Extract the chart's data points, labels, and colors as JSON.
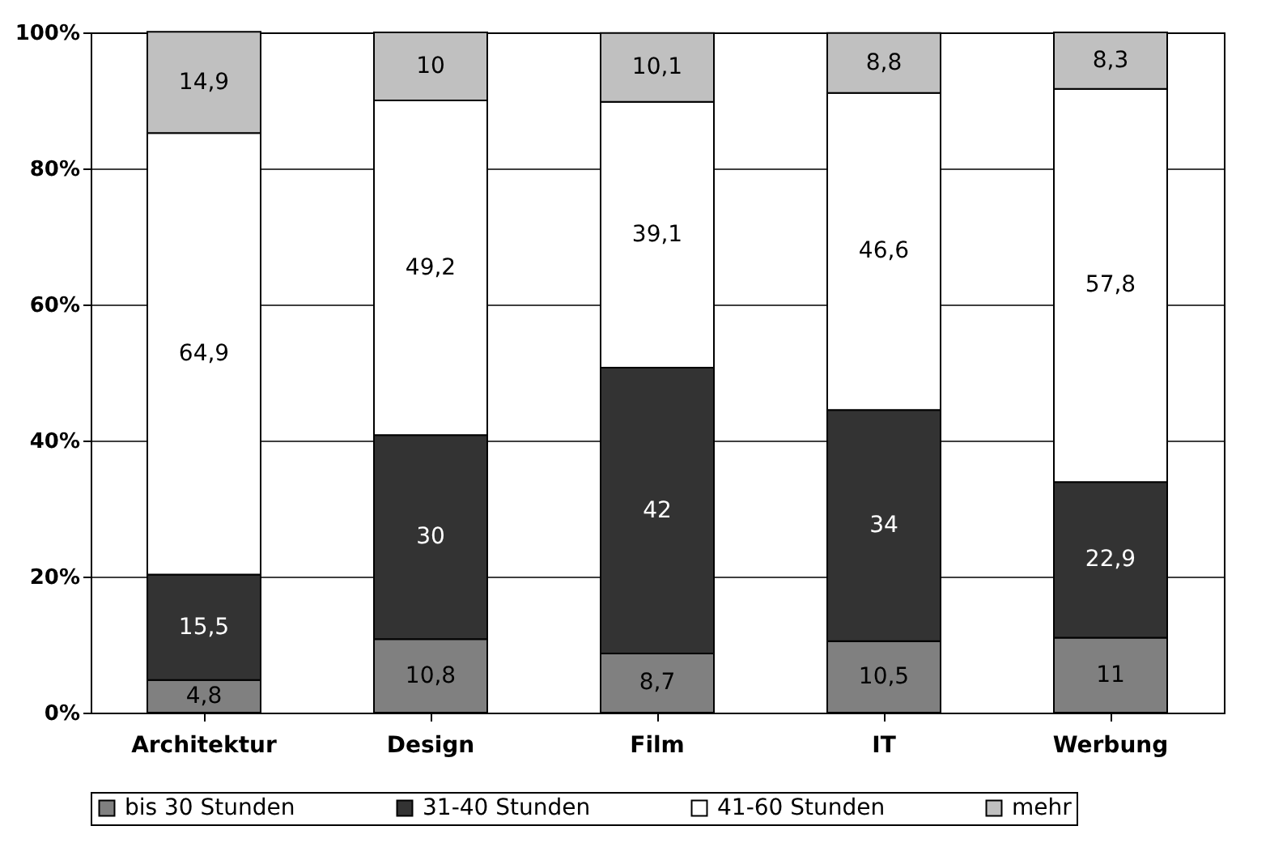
{
  "chart_data": {
    "type": "bar",
    "stacked": true,
    "categories": [
      "Architektur",
      "Design",
      "Film",
      "IT",
      "Werbung"
    ],
    "series": [
      {
        "name": "bis 30 Stunden",
        "color": "#808080",
        "values": [
          4.8,
          10.8,
          8.7,
          10.5,
          11
        ],
        "value_labels": [
          "4,8",
          "10,8",
          "8,7",
          "10,5",
          "11"
        ]
      },
      {
        "name": "31-40 Stunden",
        "color": "#333333",
        "values": [
          15.5,
          30,
          42,
          34,
          22.9
        ],
        "value_labels": [
          "15,5",
          "30",
          "42",
          "34",
          "22,9"
        ]
      },
      {
        "name": "41-60 Stunden",
        "color": "#ffffff",
        "values": [
          64.9,
          49.2,
          39.1,
          46.6,
          57.8
        ],
        "value_labels": [
          "64,9",
          "49,2",
          "39,1",
          "46,6",
          "57,8"
        ]
      },
      {
        "name": "mehr",
        "color": "#c0c0c0",
        "values": [
          14.9,
          10,
          10.1,
          8.8,
          8.3
        ],
        "value_labels": [
          "14,9",
          "10",
          "10,1",
          "8,8",
          "8,3"
        ]
      }
    ],
    "ylim": [
      0,
      100
    ],
    "yticks": [
      {
        "value": 0,
        "label": "0%"
      },
      {
        "value": 20,
        "label": "20%"
      },
      {
        "value": 40,
        "label": "40%"
      },
      {
        "value": 60,
        "label": "60%"
      },
      {
        "value": 80,
        "label": "80%"
      },
      {
        "value": 100,
        "label": "100%"
      }
    ],
    "grid": "y",
    "legend": "bottom"
  }
}
